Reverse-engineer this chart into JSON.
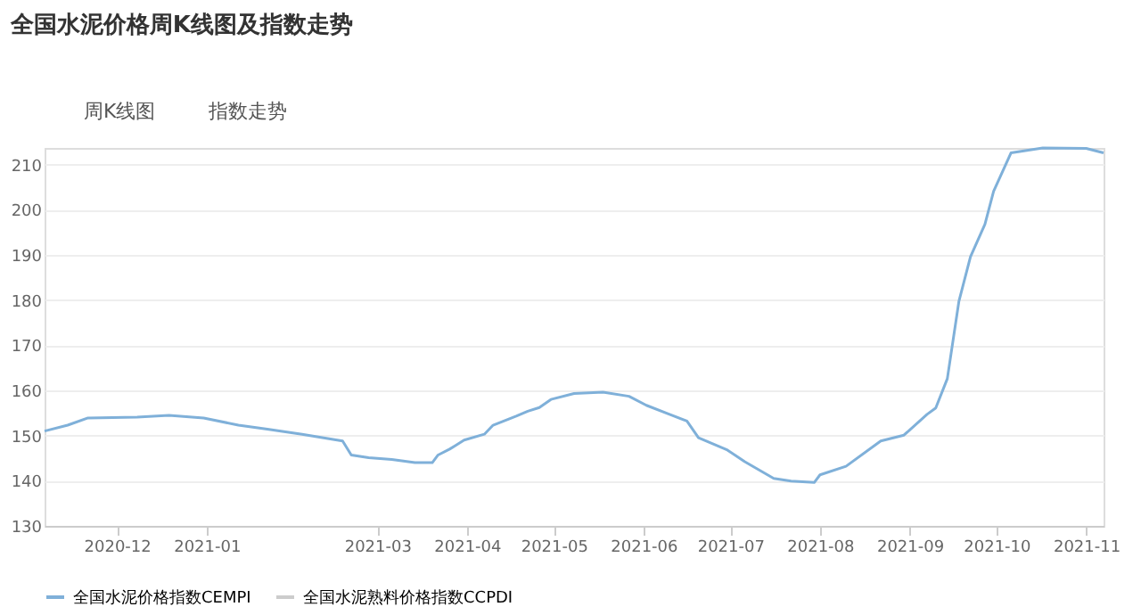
{
  "chart_data": {
    "type": "line",
    "title": "全国水泥价格周K线图及指数走势",
    "annotations": [
      "周K线图",
      "指数走势"
    ],
    "x": [
      "2020-11-06",
      "2020-11-14",
      "2020-11-21",
      "2020-12-08",
      "2020-12-19",
      "2020-12-31",
      "2021-01-12",
      "2021-01-22",
      "2021-02-03",
      "2021-02-17",
      "2021-02-20",
      "2021-02-26",
      "2021-03-06",
      "2021-03-14",
      "2021-03-20",
      "2021-03-22",
      "2021-03-26",
      "2021-03-31",
      "2021-04-07",
      "2021-04-10",
      "2021-04-18",
      "2021-04-22",
      "2021-04-26",
      "2021-04-30",
      "2021-05-08",
      "2021-05-18",
      "2021-05-27",
      "2021-06-02",
      "2021-06-10",
      "2021-06-16",
      "2021-06-20",
      "2021-06-30",
      "2021-07-06",
      "2021-07-16",
      "2021-07-22",
      "2021-07-30",
      "2021-08-01",
      "2021-08-10",
      "2021-08-22",
      "2021-08-30",
      "2021-09-07",
      "2021-09-10",
      "2021-09-14",
      "2021-09-18",
      "2021-09-22",
      "2021-09-27",
      "2021-09-30",
      "2021-10-06",
      "2021-10-17",
      "2021-11-01",
      "2021-11-07"
    ],
    "series": [
      {
        "name": "全国水泥价格指数CEMPI",
        "color": "#7fb0d9",
        "values": [
          151.0,
          152.3,
          153.9,
          154.1,
          154.5,
          153.9,
          152.3,
          151.4,
          150.3,
          148.8,
          145.7,
          145.1,
          144.7,
          144.0,
          144.0,
          145.7,
          147.0,
          149.0,
          150.3,
          152.3,
          154.3,
          155.4,
          156.2,
          158.0,
          159.3,
          159.6,
          158.7,
          156.7,
          154.7,
          153.2,
          149.5,
          146.8,
          144.2,
          140.5,
          139.9,
          139.6,
          141.3,
          143.2,
          148.8,
          150.1,
          154.7,
          156.1,
          162.6,
          179.7,
          189.6,
          196.8,
          204.1,
          212.6,
          213.7,
          213.6,
          212.6
        ]
      },
      {
        "name": "全国水泥熟料价格指数CCPDI",
        "color": "#cccccc",
        "values": [
          null,
          null,
          null,
          null,
          null,
          null,
          null,
          null,
          null,
          null,
          null,
          null,
          null,
          null,
          null,
          null,
          null,
          null,
          null,
          null,
          null,
          null,
          null,
          null,
          null,
          null,
          null,
          null,
          null,
          null,
          null,
          null,
          null,
          null,
          null,
          null,
          null,
          null,
          null,
          null,
          null,
          null,
          null,
          null,
          null,
          null,
          null,
          null,
          null,
          null,
          null
        ]
      }
    ],
    "xlim": [
      "2020-11-06",
      "2021-11-07"
    ],
    "xticks": [
      "2020-12",
      "2021-01",
      "2021-03",
      "2021-04",
      "2021-05",
      "2021-06",
      "2021-07",
      "2021-08",
      "2021-09",
      "2021-10",
      "2021-11"
    ],
    "ylim": [
      130,
      213.7
    ],
    "yticks": [
      130,
      140,
      150,
      160,
      170,
      180,
      190,
      200,
      210
    ],
    "grid": "y",
    "legend": "bottom",
    "marker": "none",
    "line_style": "solid"
  }
}
